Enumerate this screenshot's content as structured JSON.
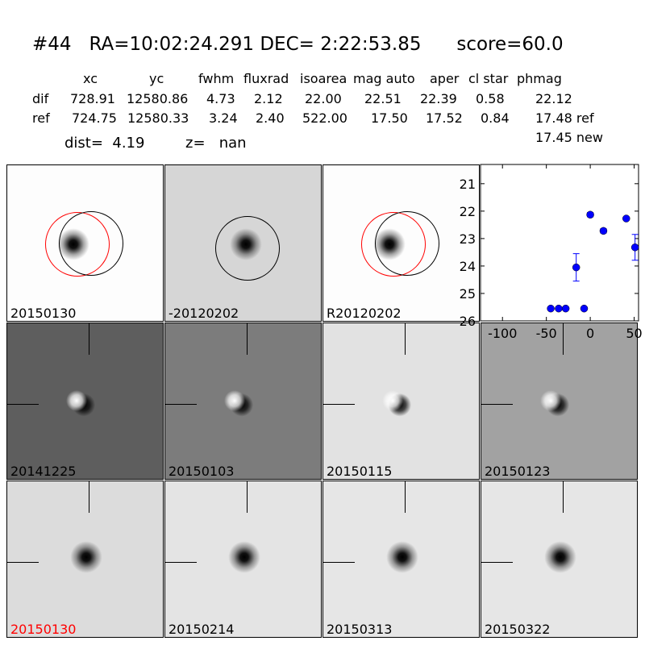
{
  "header": {
    "title": "#44   RA=10:02:24.291 DEC= 2:22:53.85      score=60.0",
    "columns": [
      "xc",
      "yc",
      "fwhm",
      "fluxrad",
      "isoarea",
      "mag auto",
      "aper",
      "cl star",
      "phmag"
    ],
    "dif": {
      "label": "dif",
      "values": [
        "728.91",
        "12580.86",
        "4.73",
        "2.12",
        "22.00",
        "22.51",
        "22.39",
        "0.58",
        "22.12"
      ]
    },
    "ref": {
      "label": "ref",
      "values": [
        "724.75",
        "12580.33",
        "3.24",
        "2.40",
        "522.00",
        "17.50",
        "17.52",
        "0.84",
        "17.48 ref"
      ]
    },
    "new_phmag": "17.45 new",
    "dist": "dist=  4.19",
    "z": "z=   nan"
  },
  "stamps": [
    {
      "label": "20150130",
      "bg": "#fdfdfd",
      "kind": "blob",
      "circles": [
        "red",
        "black"
      ]
    },
    {
      "label": "-20120202",
      "bg": "#d6d6d6",
      "kind": "blob",
      "circles": [
        "black"
      ]
    },
    {
      "label": "R20120202",
      "bg": "#fdfdfd",
      "kind": "blob",
      "circles": [
        "red",
        "black"
      ]
    },
    {
      "label": "20141225",
      "bg": "#5e5e5e",
      "kind": "dipole"
    },
    {
      "label": "20150103",
      "bg": "#7c7c7c",
      "kind": "dipole"
    },
    {
      "label": "20150115",
      "bg": "#e2e2e2",
      "kind": "dipole"
    },
    {
      "label": "20150123",
      "bg": "#a2a2a2",
      "kind": "dipole"
    },
    {
      "label": "20150130",
      "bg": "#dcdcdc",
      "kind": "blob",
      "label_color": "#ff0000"
    },
    {
      "label": "20150214",
      "bg": "#e4e4e4",
      "kind": "blob"
    },
    {
      "label": "20150313",
      "bg": "#e6e6e6",
      "kind": "blob"
    },
    {
      "label": "20150322",
      "bg": "#e6e6e6",
      "kind": "blob"
    }
  ],
  "chart_data": {
    "type": "scatter",
    "xlim": [
      -125,
      55
    ],
    "ylim": [
      26,
      20.3
    ],
    "y_inverted": true,
    "xticks": [
      "-100",
      "-50",
      "0",
      "50"
    ],
    "yticks": [
      "21",
      "22",
      "23",
      "24",
      "25",
      "26"
    ],
    "color": "#0000ff",
    "points": [
      {
        "x": -45,
        "y": 25.55,
        "err": 0.03
      },
      {
        "x": -36,
        "y": 25.55,
        "err": 0.03
      },
      {
        "x": -28,
        "y": 25.55,
        "err": 0.03
      },
      {
        "x": -16,
        "y": 24.05,
        "err": 0.5
      },
      {
        "x": -7,
        "y": 25.55,
        "err": 0.03
      },
      {
        "x": 0,
        "y": 22.13,
        "err": 0.08
      },
      {
        "x": 15,
        "y": 22.72,
        "err": 0.08
      },
      {
        "x": 41,
        "y": 22.27,
        "err": 0.05
      },
      {
        "x": 51,
        "y": 23.32,
        "err": 0.47
      }
    ]
  }
}
